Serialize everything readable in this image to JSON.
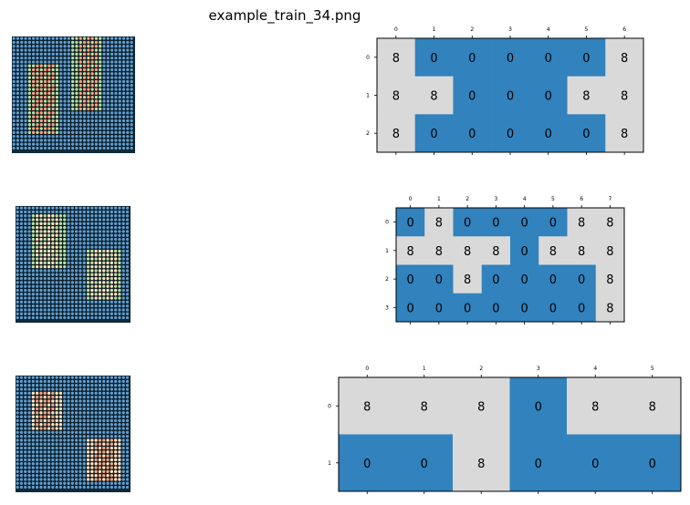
{
  "title": "example_train_34.png",
  "colors": {
    "blue": "#3182bd",
    "grey": "#d9d9d9",
    "bead_blue": "#5b9fd4",
    "bead_outline": "#0a0a0a",
    "orange": "#f4a582",
    "green": "#b5e2a8",
    "cream": "#fde4c4"
  },
  "rows": [
    {
      "input_image": "bead-grid-with-two-figures",
      "output_grid": {
        "col_ticks": [
          "0",
          "1",
          "2",
          "3",
          "4",
          "5",
          "6"
        ],
        "row_ticks": [
          "0",
          "1",
          "2"
        ],
        "values": [
          [
            8,
            0,
            0,
            0,
            0,
            0,
            8
          ],
          [
            8,
            8,
            0,
            0,
            0,
            8,
            8
          ],
          [
            8,
            0,
            0,
            0,
            0,
            0,
            8
          ]
        ]
      }
    },
    {
      "input_image": "bead-grid-with-two-figures",
      "output_grid": {
        "col_ticks": [
          "0",
          "1",
          "2",
          "3",
          "4",
          "5",
          "6",
          "7"
        ],
        "row_ticks": [
          "0",
          "1",
          "2",
          "3"
        ],
        "values": [
          [
            0,
            8,
            0,
            0,
            0,
            0,
            8,
            8
          ],
          [
            8,
            8,
            8,
            8,
            0,
            8,
            8,
            8
          ],
          [
            0,
            0,
            8,
            0,
            0,
            0,
            0,
            8
          ],
          [
            0,
            0,
            0,
            0,
            0,
            0,
            0,
            8
          ]
        ]
      }
    },
    {
      "input_image": "bead-grid-with-two-figures",
      "output_grid": {
        "col_ticks": [
          "0",
          "1",
          "2",
          "3",
          "4",
          "5"
        ],
        "row_ticks": [
          "0",
          "1"
        ],
        "values": [
          [
            8,
            8,
            8,
            0,
            8,
            8
          ],
          [
            0,
            0,
            8,
            0,
            0,
            0
          ]
        ]
      }
    }
  ]
}
